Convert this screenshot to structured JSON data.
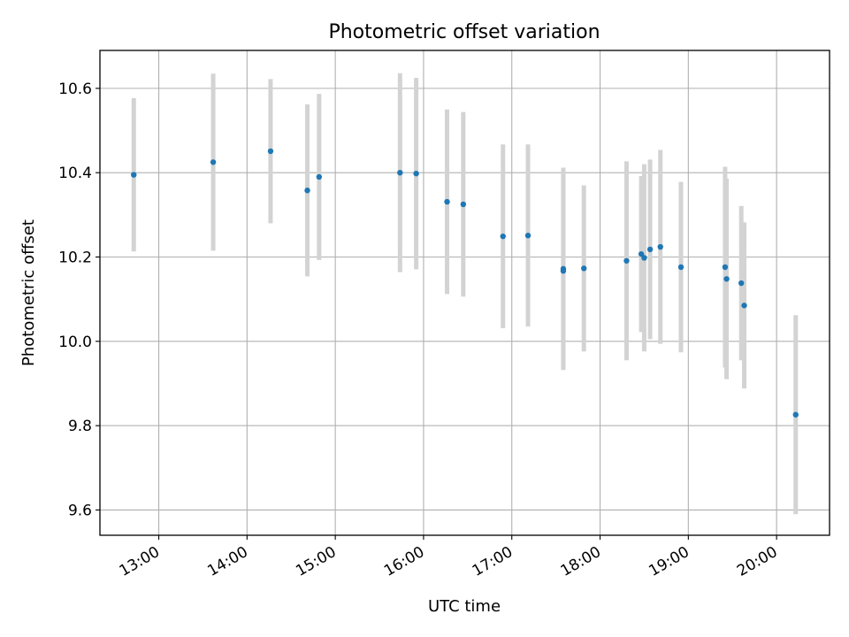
{
  "chart_data": {
    "type": "scatter",
    "title": "Photometric offset variation",
    "xlabel": "UTC time",
    "ylabel": "Photometric offset",
    "x_tick_labels": [
      "13:00",
      "14:00",
      "15:00",
      "16:00",
      "17:00",
      "18:00",
      "19:00",
      "20:00"
    ],
    "y_tick_labels": [
      "9.6",
      "9.8",
      "10.0",
      "10.2",
      "10.4",
      "10.6"
    ],
    "xlim": [
      "12:20",
      "20:36"
    ],
    "ylim": [
      9.54,
      10.69
    ],
    "grid": true,
    "legend": "none",
    "point_color": "#1f77b4",
    "errorbar_color": "#d3d3d3",
    "points": [
      {
        "x": "12:43",
        "y": 10.395,
        "err": 0.182
      },
      {
        "x": "13:37",
        "y": 10.425,
        "err": 0.21
      },
      {
        "x": "14:16",
        "y": 10.451,
        "err": 0.171
      },
      {
        "x": "14:41",
        "y": 10.358,
        "err": 0.204
      },
      {
        "x": "14:49",
        "y": 10.39,
        "err": 0.197
      },
      {
        "x": "15:44",
        "y": 10.4,
        "err": 0.236
      },
      {
        "x": "15:55",
        "y": 10.398,
        "err": 0.227
      },
      {
        "x": "16:16",
        "y": 10.331,
        "err": 0.219
      },
      {
        "x": "16:27",
        "y": 10.325,
        "err": 0.219
      },
      {
        "x": "16:54",
        "y": 10.249,
        "err": 0.218
      },
      {
        "x": "17:11",
        "y": 10.251,
        "err": 0.216
      },
      {
        "x": "17:35",
        "y": 10.172,
        "err": 0.24
      },
      {
        "x": "17:35",
        "y": 10.167,
        "err": 0.226
      },
      {
        "x": "17:49",
        "y": 10.173,
        "err": 0.197
      },
      {
        "x": "18:18",
        "y": 10.191,
        "err": 0.236
      },
      {
        "x": "18:28",
        "y": 10.207,
        "err": 0.185
      },
      {
        "x": "18:30",
        "y": 10.198,
        "err": 0.222
      },
      {
        "x": "18:34",
        "y": 10.218,
        "err": 0.213
      },
      {
        "x": "18:41",
        "y": 10.224,
        "err": 0.23
      },
      {
        "x": "18:55",
        "y": 10.176,
        "err": 0.202
      },
      {
        "x": "19:25",
        "y": 10.176,
        "err": 0.238
      },
      {
        "x": "19:26",
        "y": 10.148,
        "err": 0.238
      },
      {
        "x": "19:36",
        "y": 10.138,
        "err": 0.183
      },
      {
        "x": "19:38",
        "y": 10.085,
        "err": 0.197
      },
      {
        "x": "20:13",
        "y": 9.826,
        "err": 0.236
      }
    ]
  }
}
